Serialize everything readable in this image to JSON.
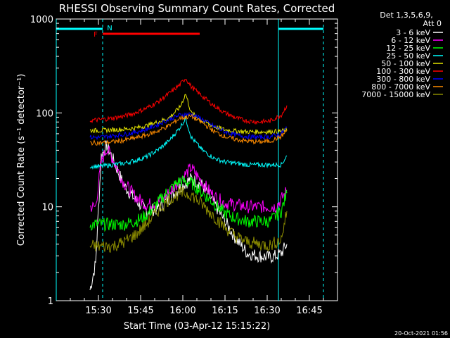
{
  "chart_data": {
    "type": "line",
    "title": "RHESSI Observing Summary Count Rates, Corrected",
    "xlabel": "Start Time (03-Apr-12 15:15:22)",
    "ylabel": "Corrected Count Rate (s⁻¹ detector⁻¹)",
    "yscale": "log",
    "ylim": [
      1,
      1000
    ],
    "xlim_minutes_after_1515": [
      0,
      100
    ],
    "x_tick_labels": [
      "15:30",
      "15:45",
      "16:00",
      "16:15",
      "16:30",
      "16:45"
    ],
    "x_tick_minutes": [
      15,
      30,
      45,
      60,
      75,
      90
    ],
    "y_tick_labels": [
      "1",
      "10",
      "100",
      "1000"
    ],
    "y_tick_values": [
      1,
      10,
      100,
      1000
    ],
    "grid": false,
    "legend_position": "right",
    "legend_header": [
      "Det 1,3,5,6,9,",
      "Att 0"
    ],
    "timestamp": "20-Oct-2021 01:56",
    "annotations": {
      "flag_F": "F",
      "flag_N": "N"
    },
    "flags": [
      {
        "label": "F",
        "color": "#ff0000",
        "start_min": 16.5,
        "end_min": 51
      },
      {
        "label": "N",
        "color": "#00ffff",
        "start_min": 0,
        "end_min": 16.5
      },
      {
        "label": "",
        "color": "#00ffff",
        "start_min": 79,
        "end_min": 95
      }
    ],
    "night_boundaries_solid_min": [
      0,
      79
    ],
    "night_boundaries_dashed_min": [
      16.5,
      95
    ],
    "series": [
      {
        "name": "3 - 6 keV",
        "color": "#ffffff",
        "x": [
          12,
          14,
          16,
          18,
          20,
          24,
          28,
          32,
          36,
          40,
          44,
          48,
          52,
          56,
          60,
          64,
          68,
          72,
          76,
          78,
          80,
          82
        ],
        "values": [
          1.3,
          2.5,
          35,
          45,
          33,
          17,
          12,
          9,
          9.5,
          12,
          16,
          20,
          17,
          11,
          7,
          4.5,
          3.2,
          3.0,
          2.9,
          3.0,
          3.2,
          4
        ]
      },
      {
        "name": "6 - 12 keV",
        "color": "#ff00ff",
        "x": [
          12,
          14,
          16,
          18,
          20,
          24,
          28,
          32,
          36,
          40,
          44,
          48,
          52,
          56,
          60,
          64,
          68,
          72,
          76,
          78,
          80,
          82
        ],
        "values": [
          10,
          10,
          30,
          42,
          33,
          18,
          13,
          10.5,
          11,
          14,
          19,
          26,
          18,
          13,
          11,
          10.5,
          10,
          10,
          10,
          10,
          12,
          15
        ]
      },
      {
        "name": "12 - 25 keV",
        "color": "#00ff00",
        "x": [
          12,
          16,
          20,
          24,
          28,
          32,
          36,
          40,
          44,
          48,
          52,
          56,
          60,
          64,
          68,
          72,
          76,
          80,
          82
        ],
        "values": [
          6.5,
          6.5,
          6.5,
          6.5,
          7,
          8,
          11,
          15,
          19,
          18,
          14,
          11,
          8.5,
          7.5,
          7,
          7,
          7,
          9,
          14
        ]
      },
      {
        "name": "25 - 50 keV",
        "color": "#00ffff",
        "x": [
          12,
          16,
          20,
          24,
          28,
          32,
          36,
          40,
          44,
          46,
          48,
          52,
          56,
          60,
          64,
          68,
          72,
          76,
          80,
          82
        ],
        "values": [
          27,
          27,
          28,
          29,
          31,
          34,
          40,
          50,
          70,
          88,
          55,
          40,
          33,
          30,
          29,
          28,
          28,
          28,
          28,
          35
        ]
      },
      {
        "name": "50 - 100 keV",
        "color": "#e6e600",
        "x": [
          12,
          16,
          20,
          24,
          28,
          32,
          36,
          40,
          44,
          46,
          48,
          52,
          56,
          60,
          64,
          68,
          72,
          76,
          80,
          82
        ],
        "values": [
          65,
          65,
          66,
          67,
          69,
          73,
          80,
          88,
          115,
          160,
          100,
          82,
          72,
          66,
          64,
          63,
          63,
          63,
          64,
          65
        ]
      },
      {
        "name": "100 - 300 keV",
        "color": "#ff0000",
        "x": [
          12,
          16,
          20,
          24,
          28,
          32,
          36,
          40,
          44,
          46,
          48,
          52,
          56,
          60,
          64,
          68,
          72,
          76,
          80,
          82
        ],
        "values": [
          83,
          85,
          88,
          92,
          100,
          112,
          130,
          160,
          200,
          235,
          190,
          150,
          120,
          100,
          88,
          82,
          80,
          82,
          95,
          120
        ]
      },
      {
        "name": "300 - 800 keV",
        "color": "#0000ff",
        "x": [
          12,
          16,
          20,
          24,
          28,
          32,
          36,
          40,
          44,
          48,
          52,
          56,
          60,
          64,
          68,
          72,
          76,
          80,
          82
        ],
        "values": [
          55,
          55,
          57,
          59,
          62,
          67,
          75,
          85,
          95,
          97,
          85,
          72,
          63,
          58,
          56,
          55,
          56,
          60,
          70
        ]
      },
      {
        "name": "800 - 7000 keV",
        "color": "#ff8c00",
        "x": [
          12,
          16,
          20,
          24,
          28,
          32,
          36,
          40,
          44,
          48,
          52,
          56,
          60,
          64,
          68,
          72,
          76,
          80,
          82
        ],
        "values": [
          48,
          48,
          49,
          51,
          54,
          58,
          64,
          73,
          88,
          92,
          78,
          64,
          56,
          52,
          50,
          49,
          50,
          56,
          65
        ]
      },
      {
        "name": "7000 - 15000 keV",
        "color": "#8b8b00",
        "x": [
          12,
          16,
          20,
          24,
          28,
          32,
          36,
          40,
          44,
          48,
          52,
          56,
          60,
          64,
          68,
          72,
          76,
          80,
          82
        ],
        "values": [
          3.8,
          3.8,
          3.8,
          4.2,
          5,
          6.5,
          9,
          12,
          14,
          13.5,
          10.5,
          8,
          6,
          4.8,
          4.2,
          4,
          3.9,
          4.5,
          9
        ]
      }
    ]
  }
}
